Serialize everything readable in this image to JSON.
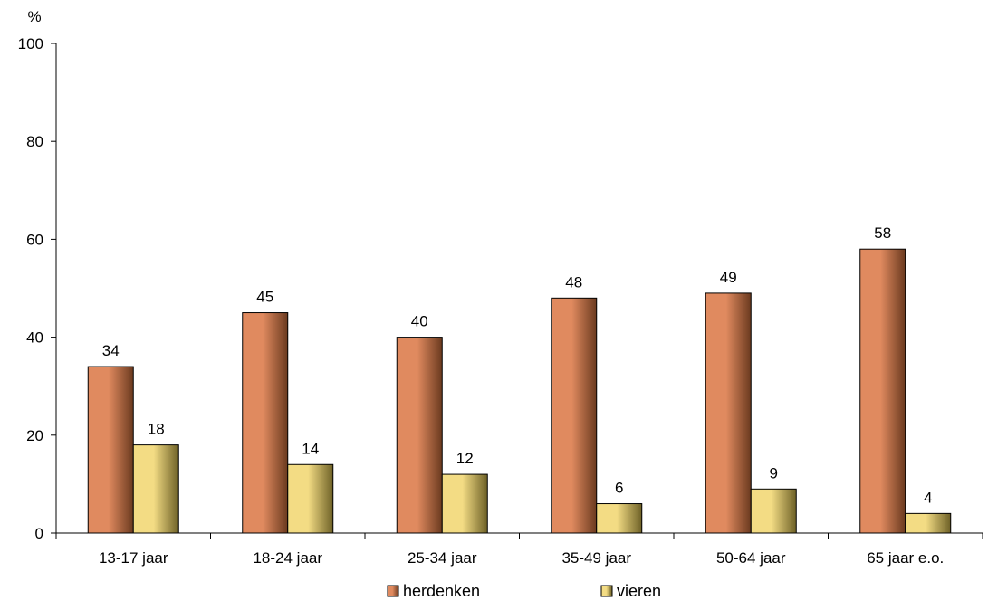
{
  "chart_data": {
    "type": "bar",
    "y_unit_label": "%",
    "categories": [
      "13-17 jaar",
      "18-24 jaar",
      "25-34 jaar",
      "35-49 jaar",
      "50-64 jaar",
      "65 jaar e.o."
    ],
    "series": [
      {
        "name": "herdenken",
        "values": [
          34,
          45,
          40,
          48,
          49,
          58
        ],
        "color_light": "#e08a5f",
        "color_dark": "#6b3a1f"
      },
      {
        "name": "vieren",
        "values": [
          18,
          14,
          12,
          6,
          9,
          4
        ],
        "color_light": "#f3dc84",
        "color_dark": "#6e6127"
      }
    ],
    "ylim": [
      0,
      100
    ],
    "yticks": [
      0,
      20,
      40,
      60,
      80,
      100
    ],
    "grid": false,
    "data_labels": true,
    "legend_position": "bottom"
  }
}
